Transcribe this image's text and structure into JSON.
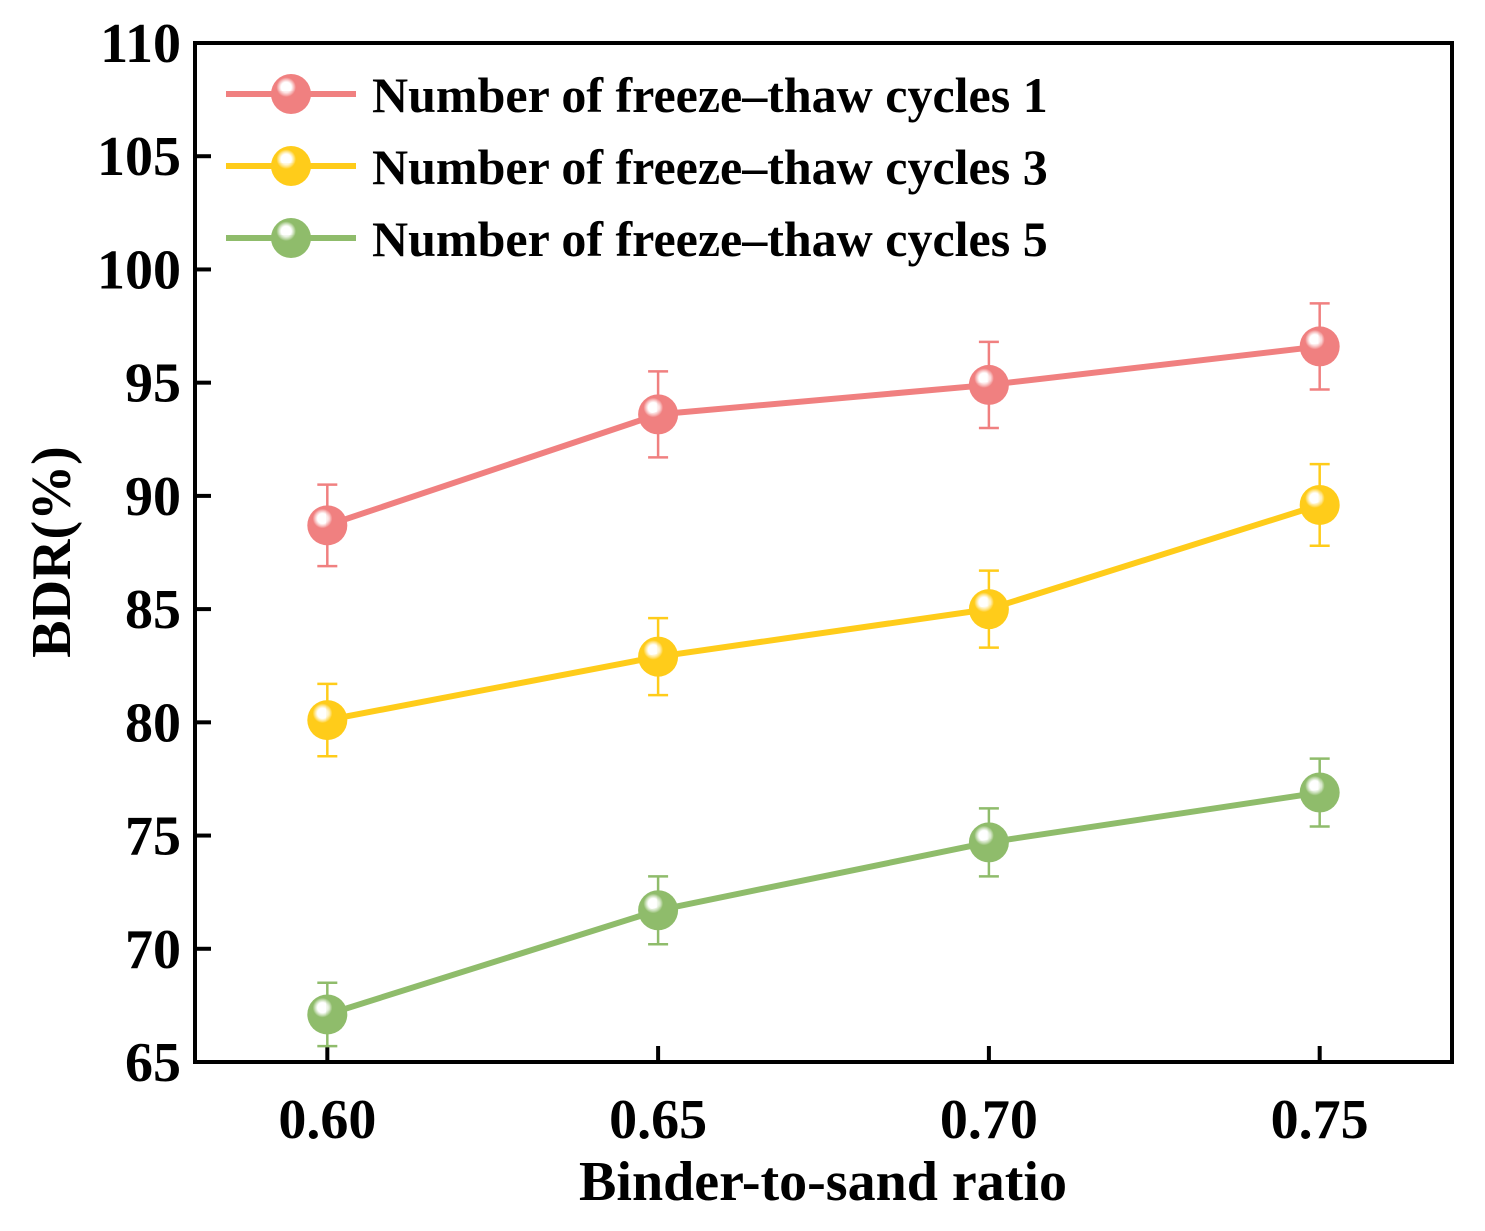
{
  "chart_data": {
    "type": "line",
    "xlabel": "Binder-to-sand ratio",
    "ylabel": "BDR(%)",
    "x": [
      0.6,
      0.65,
      0.7,
      0.75
    ],
    "x_tick_labels": [
      "0.60",
      "0.65",
      "0.70",
      "0.75"
    ],
    "xlim": [
      0.58,
      0.77
    ],
    "ylim": [
      65,
      110
    ],
    "y_ticks": [
      65,
      70,
      75,
      80,
      85,
      90,
      95,
      100,
      105,
      110
    ],
    "y_tick_labels": [
      "65",
      "70",
      "75",
      "80",
      "85",
      "90",
      "95",
      "100",
      "105",
      "110"
    ],
    "legend_position": "top-left",
    "grid": false,
    "series": [
      {
        "name": "Number of freeze–thaw cycles 1",
        "color": "#F08080",
        "values": [
          88.7,
          93.6,
          94.9,
          96.6
        ],
        "errors": [
          1.8,
          1.9,
          1.9,
          1.9
        ]
      },
      {
        "name": "Number of freeze–thaw cycles 3",
        "color": "#FFCC1A",
        "values": [
          80.1,
          82.9,
          85.0,
          89.6
        ],
        "errors": [
          1.6,
          1.7,
          1.7,
          1.8
        ]
      },
      {
        "name": "Number of freeze–thaw cycles 5",
        "color": "#8FBC6B",
        "values": [
          67.1,
          71.7,
          74.7,
          76.9
        ],
        "errors": [
          1.4,
          1.5,
          1.5,
          1.5
        ]
      }
    ]
  }
}
